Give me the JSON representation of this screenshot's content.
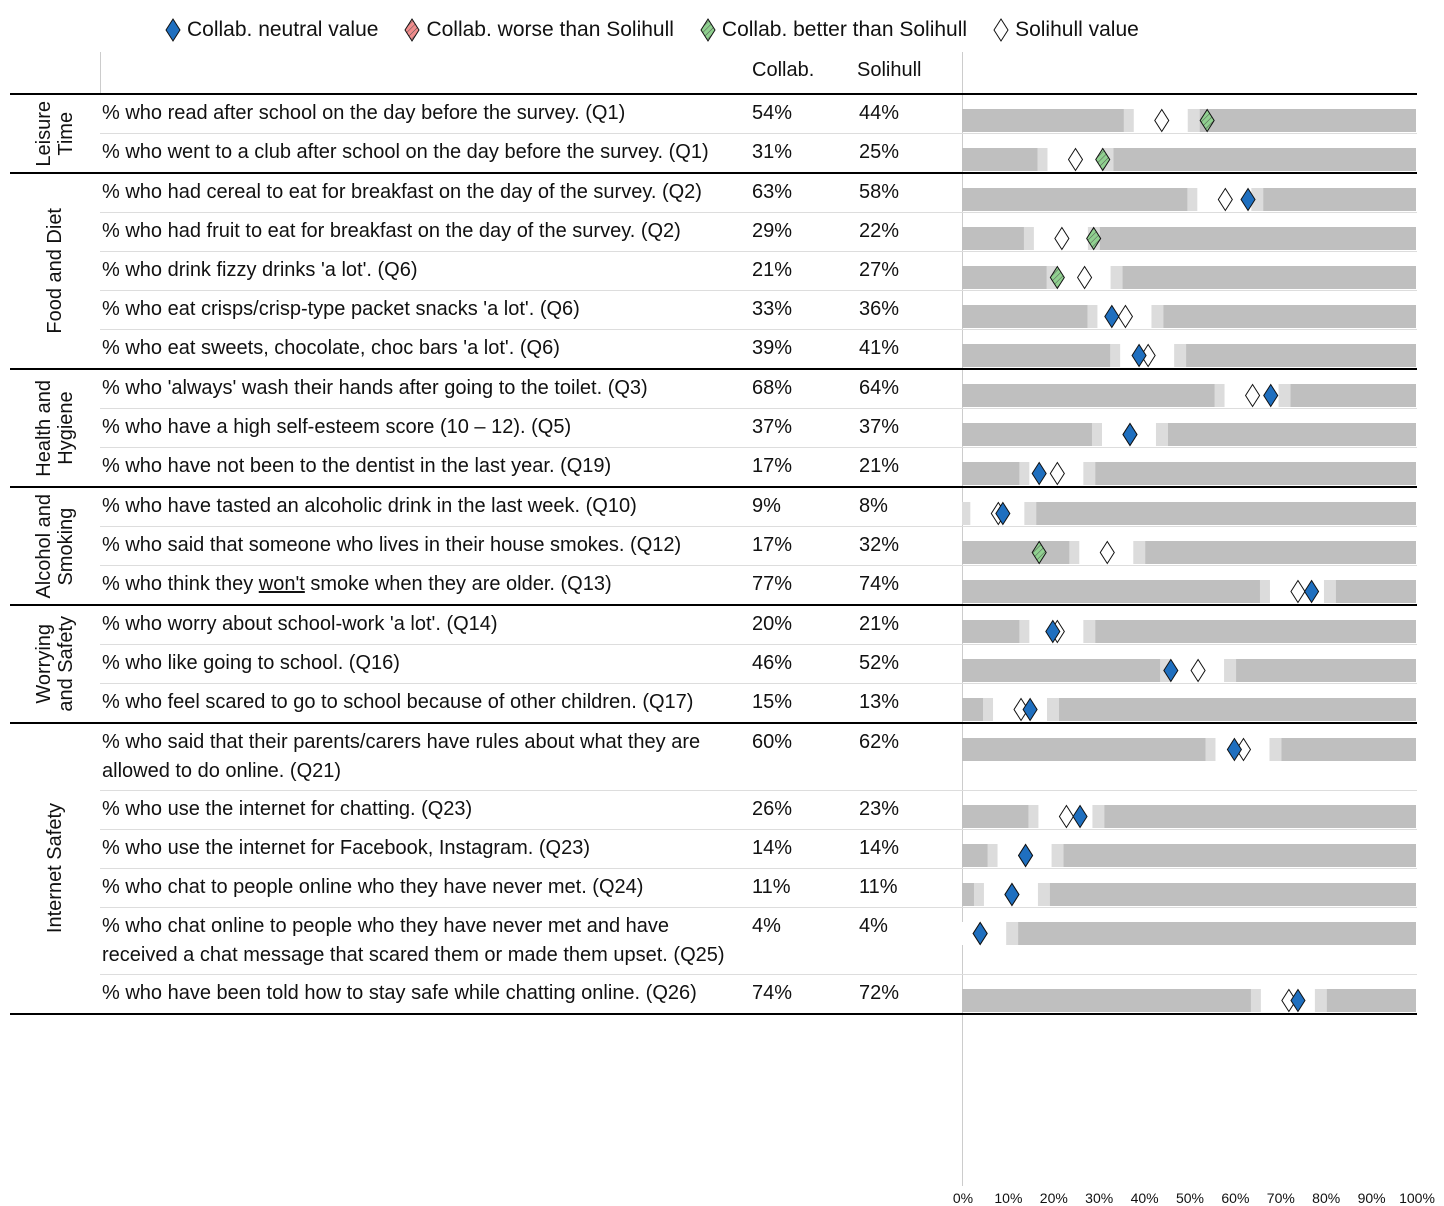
{
  "chart_data": {
    "type": "dot-table",
    "legend": [
      {
        "label": "Collab. neutral value",
        "color": "#1f6fbf",
        "hatched": false
      },
      {
        "label": "Collab. worse than Solihull",
        "color": "#f08c8c",
        "hatched": true
      },
      {
        "label": "Collab. better than Solihull",
        "color": "#8fd08f",
        "hatched": true
      },
      {
        "label": "Solihull value",
        "color": "#ffffff",
        "hatched": false
      }
    ],
    "columns": [
      "Collab.",
      "Solihull"
    ],
    "groups": [
      {
        "name": [
          "Leisure",
          "Time"
        ],
        "rows": [
          {
            "label": "% who read after school on the day before the survey. (Q1)",
            "collab": 54,
            "collab_label": "54%",
            "solihull": 44,
            "solihull_label": "44%",
            "marker": 2
          },
          {
            "label": "% who went to a club after school on the day before the survey. (Q1)",
            "collab": 31,
            "collab_label": "31%",
            "solihull": 25,
            "solihull_label": "25%",
            "marker": 2
          }
        ]
      },
      {
        "name": [
          "Food and Diet"
        ],
        "rows": [
          {
            "label": "% who had cereal to eat for breakfast on the day of the survey. (Q2)",
            "collab": 63,
            "collab_label": "63%",
            "solihull": 58,
            "solihull_label": "58%",
            "marker": 0
          },
          {
            "label": "% who had fruit to eat for breakfast on the day of the survey. (Q2)",
            "collab": 29,
            "collab_label": "29%",
            "solihull": 22,
            "solihull_label": "22%",
            "marker": 2
          },
          {
            "label": "% who drink fizzy drinks 'a lot'. (Q6)",
            "collab": 21,
            "collab_label": "21%",
            "solihull": 27,
            "solihull_label": "27%",
            "marker": 2
          },
          {
            "label": "% who eat crisps/crisp-type packet snacks 'a lot'. (Q6)",
            "collab": 33,
            "collab_label": "33%",
            "solihull": 36,
            "solihull_label": "36%",
            "marker": 0
          },
          {
            "label": "% who eat sweets, chocolate, choc bars 'a lot'. (Q6)",
            "collab": 39,
            "collab_label": "39%",
            "solihull": 41,
            "solihull_label": "41%",
            "marker": 0
          }
        ]
      },
      {
        "name": [
          "Health and",
          "Hygiene"
        ],
        "rows": [
          {
            "label": "% who 'always' wash their hands after going to the toilet. (Q3)",
            "collab": 68,
            "collab_label": "68%",
            "solihull": 64,
            "solihull_label": "64%",
            "marker": 0
          },
          {
            "label": "% who have a high self-esteem score (10 – 12). (Q5)",
            "collab": 37,
            "collab_label": "37%",
            "solihull": 37,
            "solihull_label": "37%",
            "marker": 0
          },
          {
            "label": "% who have not been to the dentist in the last year. (Q19)",
            "collab": 17,
            "collab_label": "17%",
            "solihull": 21,
            "solihull_label": "21%",
            "marker": 0
          }
        ]
      },
      {
        "name": [
          "Alcohol and",
          "Smoking"
        ],
        "rows": [
          {
            "label": "% who have tasted an alcoholic drink in the last week. (Q10)",
            "collab": 9,
            "collab_label": "9%",
            "solihull": 8,
            "solihull_label": "8%",
            "marker": 0
          },
          {
            "label": "% who said that someone who lives in their house smokes. (Q12)",
            "collab": 17,
            "collab_label": "17%",
            "solihull": 32,
            "solihull_label": "32%",
            "marker": 2
          },
          {
            "label": [
              "% who think they ",
              "won't",
              " smoke when they are older. (Q13)"
            ],
            "underline_part": 1,
            "collab": 77,
            "collab_label": "77%",
            "solihull": 74,
            "solihull_label": "74%",
            "marker": 0
          }
        ]
      },
      {
        "name": [
          "Worrying",
          "and Safety"
        ],
        "rows": [
          {
            "label": "% who worry about school-work 'a lot'. (Q14)",
            "collab": 20,
            "collab_label": "20%",
            "solihull": 21,
            "solihull_label": "21%",
            "marker": 0
          },
          {
            "label": "% who like going to school. (Q16)",
            "collab": 46,
            "collab_label": "46%",
            "solihull": 52,
            "solihull_label": "52%",
            "marker": 0
          },
          {
            "label": "% who feel scared to go to school because of other children. (Q17)",
            "collab": 15,
            "collab_label": "15%",
            "solihull": 13,
            "solihull_label": "13%",
            "marker": 0
          }
        ]
      },
      {
        "name": [
          "Internet Safety"
        ],
        "rows": [
          {
            "label": "% who said that their parents/carers have rules about what they are allowed to do online. (Q21)",
            "collab": 60,
            "collab_label": "60%",
            "solihull": 62,
            "solihull_label": "62%",
            "marker": 0
          },
          {
            "label": "% who use the internet for chatting. (Q23)",
            "collab": 26,
            "collab_label": "26%",
            "solihull": 23,
            "solihull_label": "23%",
            "marker": 0
          },
          {
            "label": "% who use the internet for Facebook, Instagram. (Q23)",
            "collab": 14,
            "collab_label": "14%",
            "solihull": 14,
            "solihull_label": "14%",
            "marker": 0
          },
          {
            "label": "% who chat to people online who they have never met. (Q24)",
            "collab": 11,
            "collab_label": "11%",
            "solihull": 11,
            "solihull_label": "11%",
            "marker": 0
          },
          {
            "label": "% who chat online to people who they have never met and have received a chat message that scared them or made them upset. (Q25)",
            "collab": 4,
            "collab_label": "4%",
            "solihull": 4,
            "solihull_label": "4%",
            "marker": 0
          },
          {
            "label": "% who have been told how to stay safe while chatting online. (Q26)",
            "collab": 74,
            "collab_label": "74%",
            "solihull": 72,
            "solihull_label": "72%",
            "marker": 0
          }
        ]
      }
    ],
    "xlim": [
      0,
      100
    ],
    "xticks": [
      {
        "value": 0,
        "label": "0%"
      },
      {
        "value": 10,
        "label": "10%"
      },
      {
        "value": 20,
        "label": "20%"
      },
      {
        "value": 30,
        "label": "30%"
      },
      {
        "value": 40,
        "label": "40%"
      },
      {
        "value": 50,
        "label": "50%"
      },
      {
        "value": 60,
        "label": "60%"
      },
      {
        "value": 70,
        "label": "70%"
      },
      {
        "value": 80,
        "label": "80%"
      },
      {
        "value": 90,
        "label": "90%"
      },
      {
        "value": 100,
        "label": "100%"
      }
    ]
  }
}
